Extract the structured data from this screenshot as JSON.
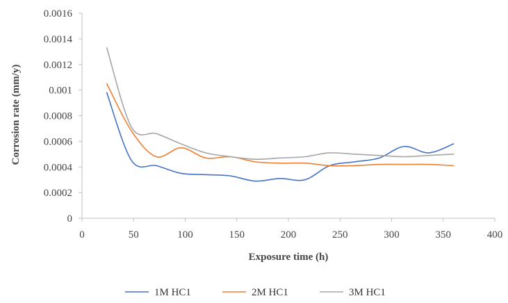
{
  "chart_data": {
    "type": "line",
    "xlabel": "Exposure  time (h)",
    "ylabel": "Corrosion  rate (mm/y)",
    "xlim": [
      0,
      400
    ],
    "ylim": [
      0,
      0.0016
    ],
    "x_ticks": [
      0,
      50,
      100,
      150,
      200,
      250,
      300,
      350,
      400
    ],
    "y_ticks": [
      0,
      0.0002,
      0.0004,
      0.0006,
      0.0008,
      0.001,
      0.0012,
      0.0014,
      0.0016
    ],
    "x_tick_labels": [
      "0",
      "50",
      "100",
      "150",
      "200",
      "250",
      "300",
      "350",
      "400"
    ],
    "y_tick_labels": [
      "0",
      "0.0002",
      "0.0004",
      "0.0006",
      "0.0008",
      "0.001",
      "0.0012",
      "0.0014",
      "0.0016"
    ],
    "grid": false,
    "legend_position": "bottom",
    "series": [
      {
        "name": "1M HC1",
        "color": "#4472C4",
        "x": [
          24,
          48,
          72,
          96,
          120,
          144,
          168,
          192,
          216,
          240,
          264,
          288,
          312,
          336,
          360
        ],
        "y": [
          0.00098,
          0.00045,
          0.00041,
          0.00035,
          0.00034,
          0.00033,
          0.00029,
          0.00031,
          0.0003,
          0.00041,
          0.00044,
          0.00047,
          0.00056,
          0.00051,
          0.00058
        ]
      },
      {
        "name": "2M HC1",
        "color": "#ED7D31",
        "x": [
          24,
          48,
          72,
          96,
          120,
          144,
          168,
          192,
          216,
          240,
          264,
          288,
          312,
          336,
          360
        ],
        "y": [
          0.00105,
          0.00068,
          0.00048,
          0.00055,
          0.00047,
          0.00048,
          0.00044,
          0.00043,
          0.00043,
          0.00041,
          0.00041,
          0.00042,
          0.00042,
          0.00042,
          0.00041
        ]
      },
      {
        "name": "3M HC1",
        "color": "#A5A5A5",
        "x": [
          24,
          48,
          72,
          96,
          120,
          144,
          168,
          192,
          216,
          240,
          264,
          288,
          312,
          336,
          360
        ],
        "y": [
          0.00133,
          0.00071,
          0.00066,
          0.00058,
          0.00051,
          0.00048,
          0.00046,
          0.00047,
          0.00048,
          0.00051,
          0.0005,
          0.00049,
          0.00048,
          0.00049,
          0.0005
        ]
      }
    ]
  }
}
